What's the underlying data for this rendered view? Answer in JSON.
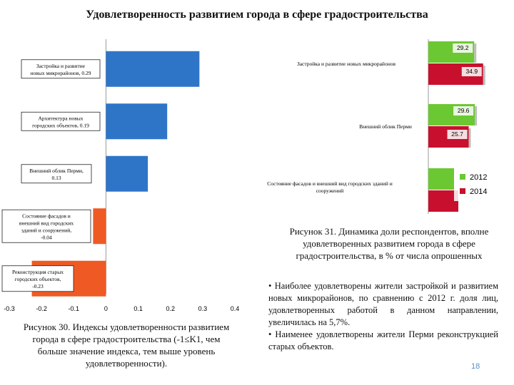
{
  "title": "Удовлетворенность развитием города в сфере градостроительства",
  "chart_data": [
    {
      "type": "bar",
      "orientation": "horizontal",
      "categories": [
        "Застройка и развитие новых микрорайонов, 0.29",
        "Архитектура новых городских объектов, 0.19",
        "Внешний облик Перми, 0.13",
        "Состояние фасадов и внешний вид городских зданий и сооружений, -0.04",
        "Реконструкция старых городских объектов, -0.23"
      ],
      "values": [
        0.29,
        0.19,
        0.13,
        -0.04,
        -0.23
      ],
      "positive_color": "#2e75c8",
      "negative_color": "#ef5a24",
      "xlim": [
        -0.3,
        0.4
      ],
      "ticks": [
        "-0.3",
        "-0.2",
        "-0.1",
        "0",
        "0.1",
        "0.2",
        "0.3",
        "0.4"
      ],
      "tick_values": [
        -0.3,
        -0.2,
        -0.1,
        0,
        0.1,
        0.2,
        0.3,
        0.4
      ]
    },
    {
      "type": "bar",
      "orientation": "horizontal",
      "categories": [
        "Застройка и развитие новых микрорайонов",
        "Внешний облик Перми",
        "Состояние фасадов и внешний вид городских зданий и сооружений"
      ],
      "series": [
        {
          "name": "2012",
          "values": [
            29.2,
            29.6,
            null
          ],
          "labels": [
            "29.2",
            "29.6",
            ""
          ],
          "color": "#6cc832"
        },
        {
          "name": "2014",
          "values": [
            34.9,
            25.7,
            null
          ],
          "labels": [
            "34.9",
            "25.7",
            ""
          ],
          "color": "#c8102e"
        }
      ]
    }
  ],
  "captions": {
    "fig30": "Рисунок 30. Индексы удовлетворенности развитием города в сфере градостроительства (-1≤K1, чем больше значение индекса, тем выше уровень удовлетворенности).",
    "fig31": "Рисунок 31. Динамика доли респондентов, вполне удовлетворенных развитием города в сфере градостроительства, в % от числа опрошенных"
  },
  "bullets": [
    "•   Наиболее удовлетворены жители застройкой и развитием новых микрорайонов, по сравнению с 2012 г. доля лиц, удовлетворенных работой в данном направлении, увеличилась на 5,7%.",
    "•   Наименее удовлетворены жители Перми реконструкцией старых объектов."
  ],
  "page_number": "18"
}
